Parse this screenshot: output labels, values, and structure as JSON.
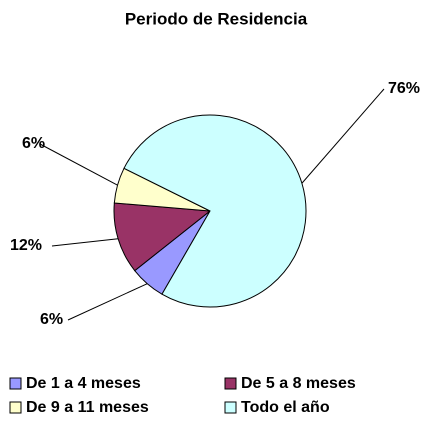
{
  "chart_data": {
    "type": "pie",
    "title": "Periodo de Residencia",
    "categories": [
      "De 1 a 4 meses",
      "De 5 a 8 meses",
      "De 9 a 11 meses",
      "Todo el año"
    ],
    "values": [
      6,
      12,
      6,
      76
    ],
    "value_labels": [
      "6%",
      "12%",
      "6%",
      "76%"
    ],
    "colors": [
      "#9999ff",
      "#993366",
      "#ffffcc",
      "#ccffff"
    ],
    "legend": "bottom"
  }
}
